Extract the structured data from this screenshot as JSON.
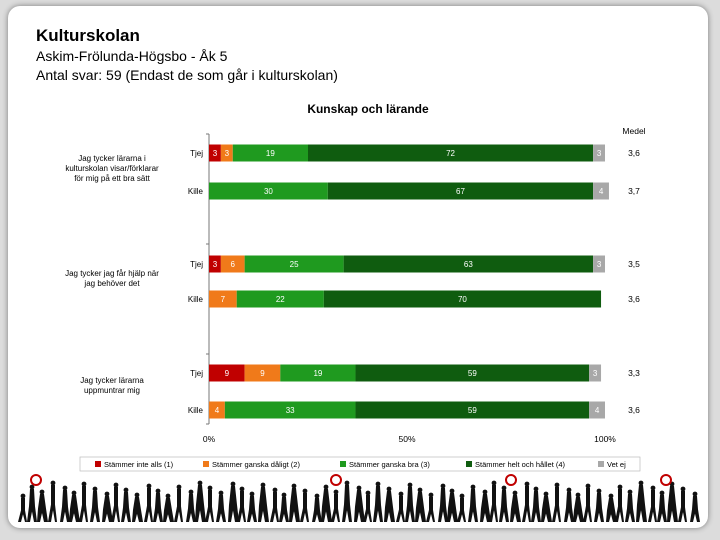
{
  "page": {
    "title": "Kulturskolan",
    "subtitle1": "Askim-Frölunda-Högsbo - Åk 5",
    "subtitle2": "Antal svar: 59 (Endast de som går i kulturskolan)"
  },
  "chart_data": {
    "type": "bar",
    "stacked": true,
    "orientation": "horizontal",
    "title": "Kunskap och lärande",
    "mean_header": "Medel",
    "xlim": [
      0,
      100
    ],
    "x_ticks": [
      "0%",
      "50%",
      "100%"
    ],
    "legend_position": "bottom",
    "series": [
      {
        "name": "Stämmer inte alls (1)",
        "color": "#c00000"
      },
      {
        "name": "Stämmer ganska dåligt (2)",
        "color": "#f07a1a"
      },
      {
        "name": "Stämmer ganska bra (3)",
        "color": "#1f9a1f"
      },
      {
        "name": "Stämmer helt och hållet (4)",
        "color": "#0f5c0f"
      },
      {
        "name": "Vet ej",
        "color": "#a8a8a8"
      }
    ],
    "groups": [
      {
        "label": "Jag tycker lärarna i kulturskolan visar/förklarar för mig på ett bra sätt",
        "label_lines": [
          "Jag tycker lärarna i",
          "kulturskolan visar/förklarar",
          "för mig på ett bra sätt"
        ],
        "rows": [
          {
            "gender": "Tjej",
            "values": [
              3,
              3,
              19,
              72,
              3
            ],
            "labels": [
              "3",
              "3",
              "19",
              "72",
              "3"
            ],
            "mean": "3,6"
          },
          {
            "gender": "Kille",
            "values": [
              0,
              0,
              30,
              67,
              4
            ],
            "labels": [
              "0",
              "",
              "30",
              "67",
              "4"
            ],
            "mean": "3,7"
          }
        ]
      },
      {
        "label": "Jag tycker jag får hjälp när jag behöver det",
        "label_lines": [
          "Jag tycker jag får hjälp när",
          "jag behöver det"
        ],
        "rows": [
          {
            "gender": "Tjej",
            "values": [
              3,
              6,
              25,
              63,
              3
            ],
            "labels": [
              "3",
              "6",
              "25",
              "63",
              "3"
            ],
            "mean": "3,5"
          },
          {
            "gender": "Kille",
            "values": [
              0,
              7,
              22,
              70,
              0
            ],
            "labels": [
              "0",
              "7",
              "22",
              "70",
              "0"
            ],
            "mean": "3,6"
          }
        ]
      },
      {
        "label": "Jag tycker lärarna uppmuntrar mig",
        "label_lines": [
          "Jag tycker lärarna",
          "uppmuntrar mig"
        ],
        "rows": [
          {
            "gender": "Tjej",
            "values": [
              9,
              9,
              19,
              59,
              3
            ],
            "labels": [
              "9",
              "9",
              "19",
              "59",
              "3"
            ],
            "mean": "3,3"
          },
          {
            "gender": "Kille",
            "values": [
              0,
              4,
              33,
              59,
              4
            ],
            "labels": [
              "0",
              "4",
              "33",
              "59",
              "4"
            ],
            "mean": "3,6"
          }
        ]
      }
    ]
  }
}
